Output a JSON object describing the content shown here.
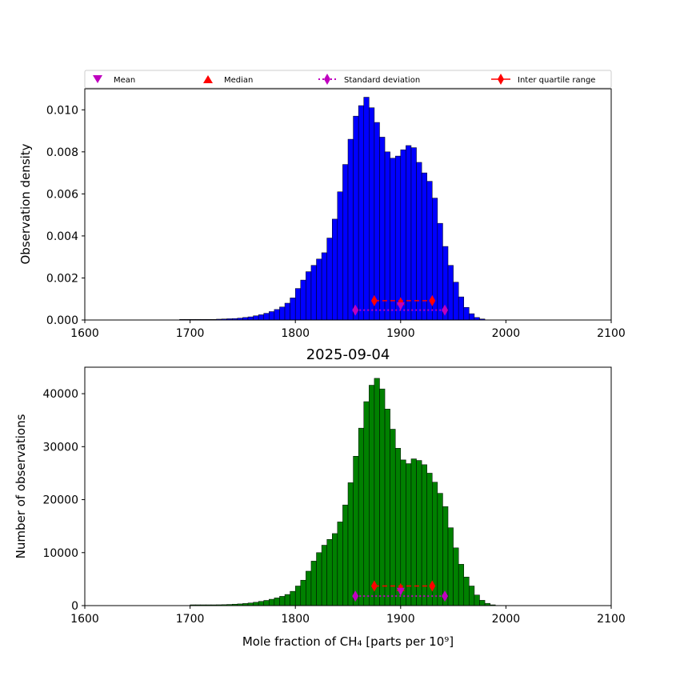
{
  "legend": {
    "entries": [
      {
        "label": "Mean",
        "marker": "triangle-down",
        "color": "#bf00bf"
      },
      {
        "label": "Median",
        "marker": "triangle-up",
        "color": "#ff0000"
      },
      {
        "label": "Standard deviation",
        "marker": "thin-diamond",
        "line": "dotted",
        "color": "#bf00bf"
      },
      {
        "label": "Inter quartile range",
        "marker": "thin-diamond",
        "line": "solid",
        "color": "#ff0000"
      }
    ],
    "placement": "above top plot"
  },
  "chart_data": [
    {
      "type": "bar",
      "ylabel": "Observation density",
      "xlabel": "",
      "title": "",
      "xlim": [
        1600,
        2100
      ],
      "ylim": [
        0,
        0.011
      ],
      "xticks": [
        1600,
        1700,
        1800,
        1900,
        2000,
        2100
      ],
      "xtick_labels": [
        "1600",
        "1700",
        "1800",
        "1900",
        "2000",
        "2100"
      ],
      "yticks": [
        0,
        0.002,
        0.004,
        0.006,
        0.008,
        0.01
      ],
      "ytick_labels": [
        "0.000",
        "0.002",
        "0.004",
        "0.006",
        "0.008",
        "0.010"
      ],
      "bar_color": "#0000ff",
      "bin_start": 1690,
      "bin_width": 5,
      "values": [
        3e-05,
        3e-05,
        3e-05,
        3e-05,
        3e-05,
        3e-05,
        3e-05,
        4e-05,
        5e-05,
        6e-05,
        7e-05,
        9e-05,
        0.00012,
        0.00015,
        0.0002,
        0.00025,
        0.00032,
        0.0004,
        0.0005,
        0.00062,
        0.0008,
        0.00105,
        0.0015,
        0.0019,
        0.0023,
        0.0026,
        0.0029,
        0.0032,
        0.0039,
        0.0048,
        0.0061,
        0.0074,
        0.0086,
        0.0097,
        0.0102,
        0.0106,
        0.0101,
        0.0094,
        0.0087,
        0.008,
        0.0077,
        0.0078,
        0.0081,
        0.0083,
        0.0082,
        0.0075,
        0.007,
        0.0066,
        0.0058,
        0.0046,
        0.0035,
        0.0026,
        0.0018,
        0.0011,
        0.0006,
        0.0003,
        0.00012,
        5e-05
      ],
      "stats": {
        "mean": {
          "x": 1900,
          "y": 0.00065
        },
        "median": {
          "x": 1900,
          "y": 0.0009
        },
        "std_dev": {
          "x": [
            1857,
            1942
          ],
          "y": 0.00047
        },
        "iqr": {
          "x": [
            1875,
            1930
          ],
          "y": 0.00092
        }
      }
    },
    {
      "type": "bar",
      "title": "2025-09-04",
      "ylabel": "Number of observations",
      "xlabel": "Mole fraction of CH₄ [parts per 10⁹]",
      "xlim": [
        1600,
        2100
      ],
      "ylim": [
        0,
        45000
      ],
      "xticks": [
        1600,
        1700,
        1800,
        1900,
        2000,
        2100
      ],
      "xtick_labels": [
        "1600",
        "1700",
        "1800",
        "1900",
        "2000",
        "2100"
      ],
      "yticks": [
        0,
        10000,
        20000,
        30000,
        40000
      ],
      "ytick_labels": [
        "0",
        "10000",
        "20000",
        "30000",
        "40000"
      ],
      "bar_color": "#008000",
      "bin_start": 1700,
      "bin_width": 5,
      "values": [
        150,
        150,
        150,
        150,
        150,
        160,
        180,
        220,
        270,
        320,
        400,
        500,
        630,
        800,
        980,
        1200,
        1450,
        1750,
        2100,
        2700,
        3700,
        4800,
        6500,
        8400,
        10000,
        11400,
        12500,
        13600,
        15800,
        19000,
        23200,
        28200,
        33500,
        38500,
        41600,
        42900,
        40900,
        37100,
        33300,
        29700,
        27500,
        26800,
        27700,
        27400,
        26600,
        25000,
        23300,
        21200,
        18700,
        14700,
        10900,
        7800,
        5400,
        3700,
        2000,
        1000,
        430,
        150,
        40
      ],
      "stats": {
        "mean": {
          "x": 1900,
          "y": 2600
        },
        "median": {
          "x": 1900,
          "y": 3500
        },
        "std_dev": {
          "x": [
            1857,
            1942
          ],
          "y": 1800
        },
        "iqr": {
          "x": [
            1875,
            1930
          ],
          "y": 3700
        }
      }
    }
  ]
}
